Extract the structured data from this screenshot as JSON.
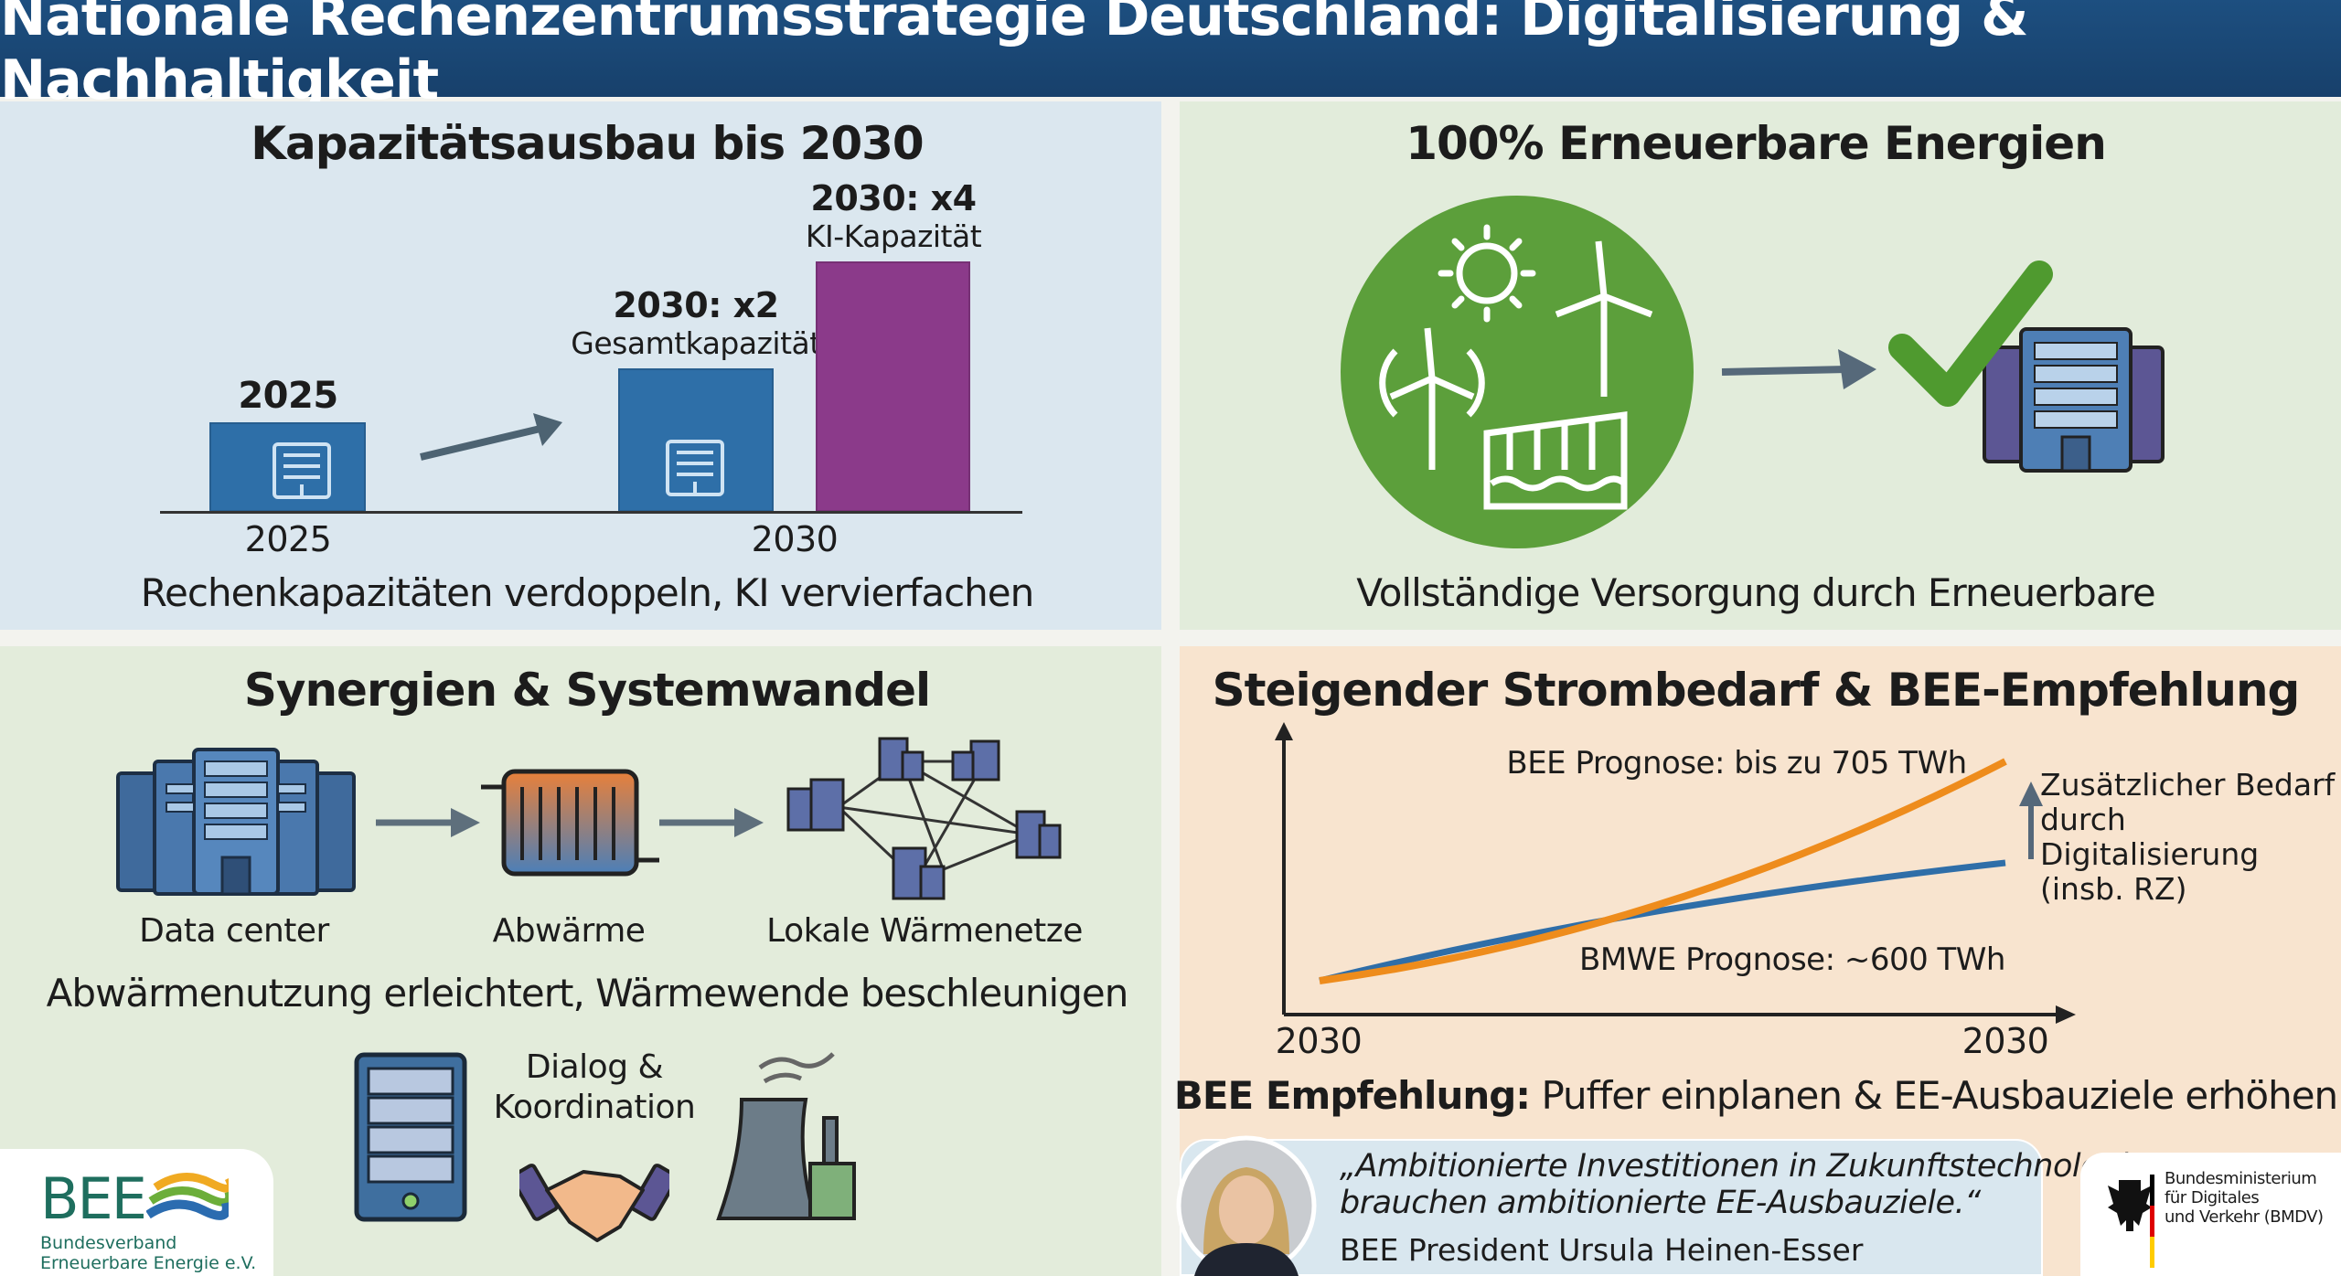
{
  "header": {
    "title": "Nationale Rechenzentrumsstrategie Deutschland: Digitalisierung & Nachhaltigkeit"
  },
  "capacity": {
    "title": "Kapazitätsausbau bis 2030",
    "bar_2025_label": "2025",
    "bar_x2_label": "2030: x2",
    "bar_x2_sub": "Gesamtkapazität",
    "bar_x4_label": "2030: x4",
    "bar_x4_sub": "KI-Kapazität",
    "axis_2025": "2025",
    "axis_2030": "2030",
    "subtitle": "Rechenkapazitäten verdoppeln, KI vervierfachen",
    "colors": {
      "blue": "#2e6fa8",
      "purple": "#8b3a8a"
    }
  },
  "renewables": {
    "title": "100% Erneuerbare Energien",
    "subtitle": "Vollständige Versorgung durch Erneuerbare",
    "color": "#5c9f3b"
  },
  "synergies": {
    "title": "Synergien & Systemwandel",
    "steps": [
      "Data center",
      "Abwärme",
      "Lokale Wärmenetze"
    ],
    "subtitle": "Abwärmenutzung erleichtert, Wärmewende beschleunigen",
    "dialog": [
      "Dialog &",
      "Koordination"
    ]
  },
  "demand": {
    "title": "Steigender Strombedarf & BEE-Empfehlung",
    "bee_label": "BEE Prognose: bis zu 705 TWh",
    "bmwe_label": "BMWE Prognose: ~600 TWh",
    "extra": [
      "Zusätzlicher Bedarf",
      "durch Digitalisierung",
      "(insb. RZ)"
    ],
    "x_start": "2030",
    "x_end": "2030",
    "recommendation_bold": "BEE Empfehlung:",
    "recommendation": " Puffer einplanen & EE-Ausbauziele erhöhen"
  },
  "chart_data": {
    "type": "line",
    "title": "Steigender Strombedarf & BEE-Empfehlung",
    "x": [
      "2030",
      "2030"
    ],
    "series": [
      {
        "name": "BEE Prognose: bis zu 705 TWh",
        "color": "#ee8c1c",
        "end_value": 705
      },
      {
        "name": "BMWE Prognose: ~600 TWh",
        "color": "#2f6ea8",
        "end_value": 600
      }
    ],
    "unit": "TWh"
  },
  "quote": {
    "line1": "„Ambitionierte Investitionen in Zukunftstechnologien",
    "line2": "brauchen ambitionierte EE-Ausbauziele.“",
    "author": "BEE President Ursula Heinen-Esser"
  },
  "logos": {
    "bee_mark": "BEE",
    "bee_line1": "Bundesverband",
    "bee_line2": "Erneuerbare Energie e.V.",
    "bmdv": [
      "Bundesministerium",
      "für Digitales",
      "und Verkehr (BMDV)"
    ]
  }
}
